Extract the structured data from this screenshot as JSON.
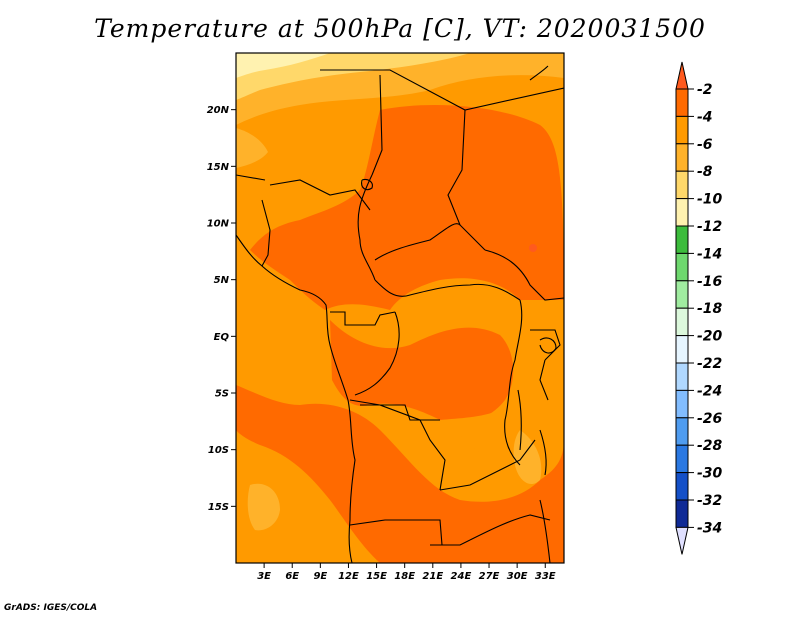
{
  "title": "Temperature at 500hPa [C], VT: 2020031500",
  "credit": "GrADS: IGES/COLA",
  "map": {
    "region": "Central Africa",
    "lon_range": [
      0,
      35
    ],
    "lat_range": [
      -20,
      25
    ],
    "lat_labels": [
      "20N",
      "15N",
      "10N",
      "5N",
      "EQ",
      "5S",
      "10S",
      "15S"
    ],
    "lat_values": [
      20,
      15,
      10,
      5,
      0,
      -5,
      -10,
      -15
    ],
    "lon_labels": [
      "3E",
      "6E",
      "9E",
      "12E",
      "15E",
      "18E",
      "21E",
      "24E",
      "27E",
      "30E",
      "33E"
    ],
    "lon_values": [
      3,
      6,
      9,
      12,
      15,
      18,
      21,
      24,
      27,
      30,
      33
    ]
  },
  "colorbar": {
    "labels": [
      "-2",
      "-4",
      "-6",
      "-8",
      "-10",
      "-12",
      "-14",
      "-16",
      "-18",
      "-20",
      "-22",
      "-24",
      "-26",
      "-28",
      "-30",
      "-32",
      "-34"
    ],
    "colors": [
      "#ff5a1e",
      "#ff6a00",
      "#ff9a00",
      "#ffb22a",
      "#ffd86a",
      "#fff2b0",
      "#3cbc3c",
      "#6ed86e",
      "#a0eca0",
      "#dcf8dc",
      "#e6f5ff",
      "#b0d8ff",
      "#82bdff",
      "#4f9cf0",
      "#2a78e2",
      "#1450c8",
      "#0f2a96",
      "#0b1478",
      "#e0e0ff"
    ]
  }
}
